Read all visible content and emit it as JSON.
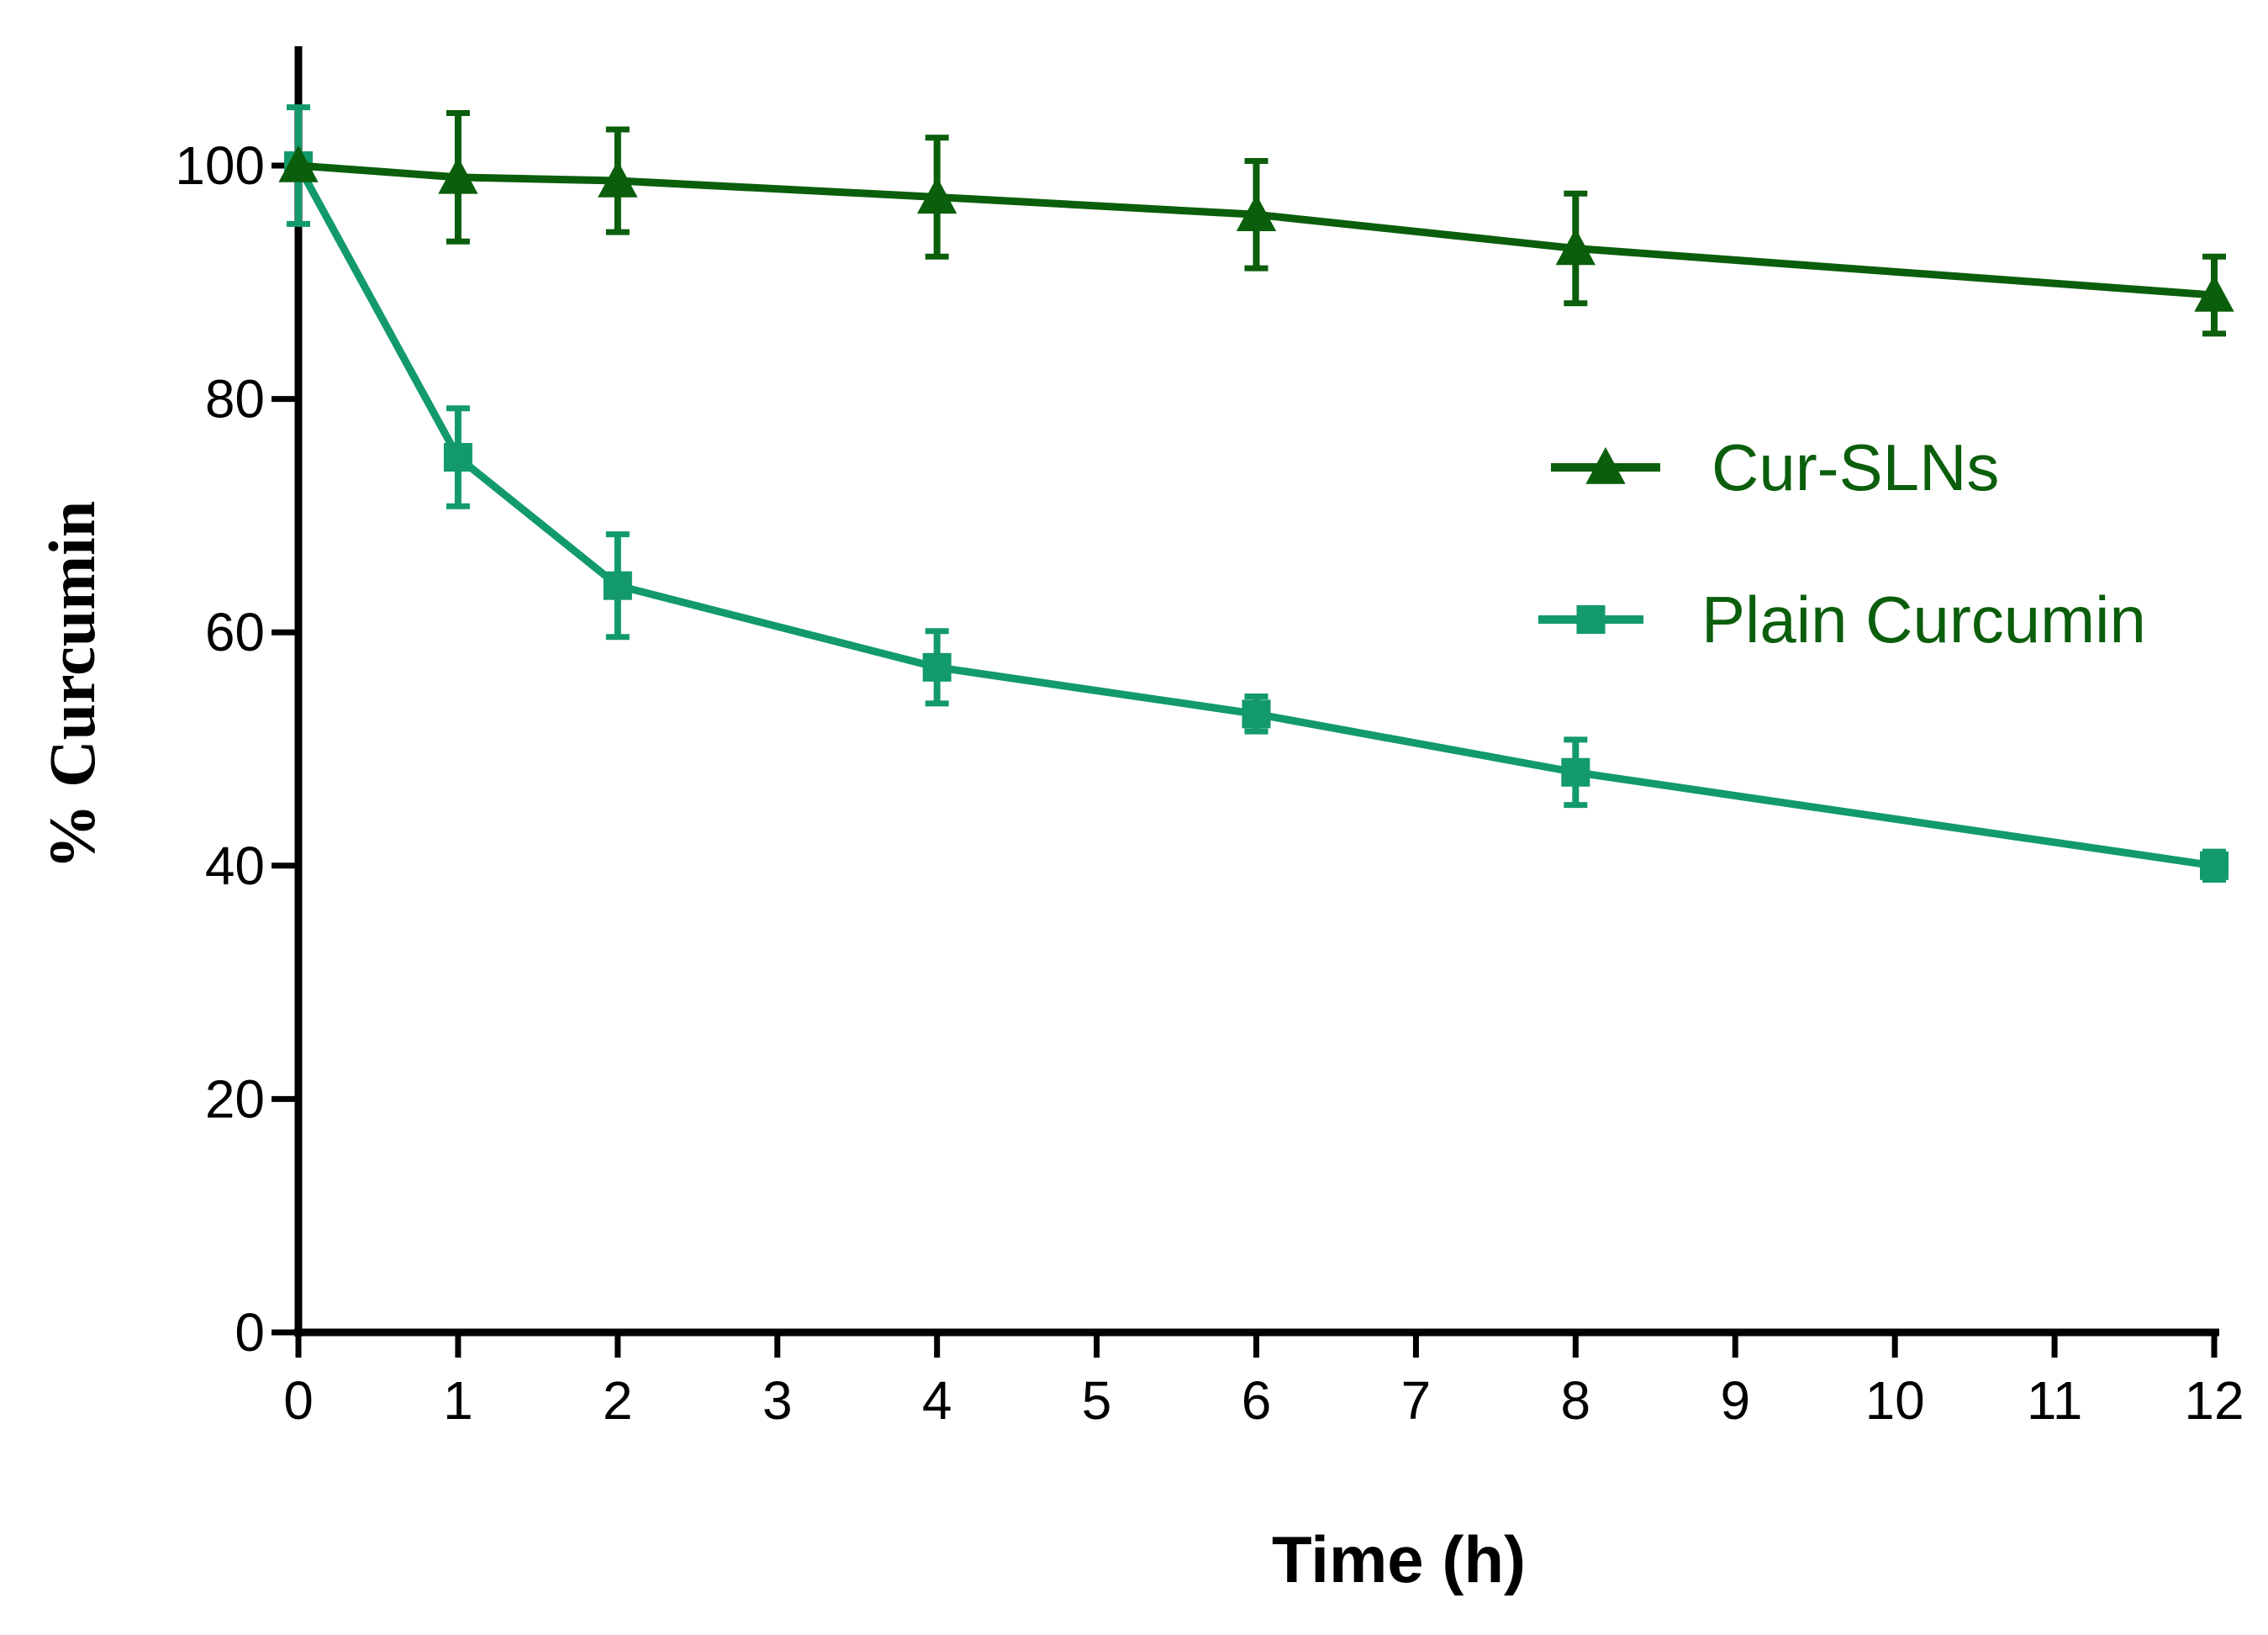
{
  "chart_data": {
    "type": "line",
    "title": "",
    "xlabel": "Time (h)",
    "ylabel": "% Curcumin",
    "xlim": [
      0,
      12
    ],
    "ylim": [
      0,
      110
    ],
    "xticks": [
      0,
      1,
      2,
      3,
      4,
      5,
      6,
      7,
      8,
      9,
      10,
      11,
      12
    ],
    "xtick_labels": [
      "0",
      "1",
      "2",
      "3",
      "4",
      "5",
      "6",
      "7",
      "8",
      "9",
      "10",
      "11",
      "12"
    ],
    "yticks": [
      0,
      20,
      40,
      60,
      80,
      100
    ],
    "ytick_labels": [
      "0",
      "20",
      "40",
      "60",
      "80",
      "100"
    ],
    "grid": false,
    "legend_position": "right",
    "series": [
      {
        "name": "Cur-SLNs",
        "color": "#0b5e0b",
        "marker": "triangle",
        "x": [
          0,
          1,
          2,
          4,
          6,
          8,
          12
        ],
        "y": [
          100,
          99,
          98.7,
          97.3,
          95.8,
          92.9,
          88.9
        ],
        "error": [
          0,
          5.5,
          4.4,
          5.1,
          4.6,
          4.7,
          3.3
        ]
      },
      {
        "name": "Plain Curcumin",
        "color": "#129a6b",
        "marker": "square",
        "x": [
          0,
          1,
          2,
          4,
          6,
          8,
          12
        ],
        "y": [
          100,
          75,
          64,
          57,
          53,
          48,
          40
        ],
        "error": [
          5,
          4.2,
          4.4,
          3.1,
          1.5,
          2.8,
          1.2
        ]
      }
    ]
  }
}
